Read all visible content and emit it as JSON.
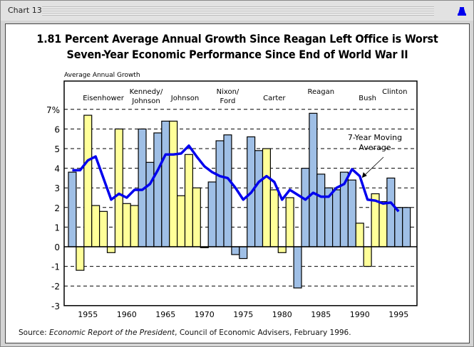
{
  "window": {
    "title": "Chart 13",
    "icon": "bell-icon",
    "icon_color": "#0000ee"
  },
  "chart_data": {
    "type": "bar",
    "title_lines": [
      "1.81 Percent Average Annual Growth Since Reagan Left Office is Worst",
      "Seven-Year Economic Performance Since End of World War II"
    ],
    "ylabel": "Average Annual Growth",
    "xlabel": "",
    "ylim": [
      -3,
      8
    ],
    "yticks": [
      -3,
      -2,
      -1,
      0,
      1,
      2,
      3,
      4,
      5,
      6,
      7
    ],
    "ytick_labels": [
      "-3",
      "-2",
      "-1",
      "0",
      "1",
      "2",
      "3",
      "4",
      "5",
      "6",
      "7%"
    ],
    "gridlines": "dashed at each integer from -2 to 7",
    "xticks": [
      1955,
      1960,
      1965,
      1970,
      1975,
      1980,
      1985,
      1990,
      1995
    ],
    "colors": {
      "blue": "#9fbfe6",
      "yellow": "#ffff99",
      "line": "#0000ee",
      "outline": "#000000"
    },
    "categories": [
      1953,
      1954,
      1955,
      1956,
      1957,
      1958,
      1959,
      1960,
      1961,
      1962,
      1963,
      1964,
      1965,
      1966,
      1967,
      1968,
      1969,
      1970,
      1971,
      1972,
      1973,
      1974,
      1975,
      1976,
      1977,
      1978,
      1979,
      1980,
      1981,
      1982,
      1983,
      1984,
      1985,
      1986,
      1987,
      1988,
      1989,
      1990,
      1991,
      1992,
      1993,
      1994,
      1995,
      1996
    ],
    "series": [
      {
        "name": "Annual Growth",
        "values": [
          3.8,
          -1.2,
          6.7,
          2.1,
          1.8,
          -0.3,
          6.0,
          2.2,
          2.1,
          6.0,
          4.3,
          5.8,
          6.4,
          6.4,
          2.6,
          4.7,
          3.0,
          -0.05,
          3.3,
          5.4,
          5.7,
          -0.4,
          -0.6,
          5.6,
          4.9,
          5.0,
          2.9,
          -0.3,
          2.5,
          -2.1,
          4.0,
          6.8,
          3.7,
          3.0,
          2.9,
          3.8,
          3.4,
          1.2,
          -1.0,
          2.7,
          2.3,
          3.5,
          2.0,
          2.0
        ],
        "bar_colors": [
          "blue",
          "yellow",
          "yellow",
          "yellow",
          "yellow",
          "yellow",
          "yellow",
          "yellow",
          "yellow",
          "blue",
          "blue",
          "blue",
          "blue",
          "yellow",
          "yellow",
          "yellow",
          "yellow",
          "yellow",
          "blue",
          "blue",
          "blue",
          "blue",
          "blue",
          "blue",
          "blue",
          "yellow",
          "yellow",
          "yellow",
          "yellow",
          "blue",
          "blue",
          "blue",
          "blue",
          "blue",
          "blue",
          "blue",
          "blue",
          "yellow",
          "yellow",
          "yellow",
          "yellow",
          "blue",
          "blue",
          "blue"
        ]
      },
      {
        "name": "7-Year Moving Average",
        "type": "line",
        "x": [
          1953,
          1954,
          1955,
          1956,
          1957,
          1958,
          1959,
          1960,
          1961,
          1962,
          1963,
          1964,
          1965,
          1966,
          1967,
          1968,
          1969,
          1970,
          1971,
          1972,
          1973,
          1974,
          1975,
          1976,
          1977,
          1978,
          1979,
          1980,
          1981,
          1982,
          1983,
          1984,
          1985,
          1986,
          1987,
          1988,
          1989,
          1990,
          1991,
          1992,
          1993,
          1994,
          1995
        ],
        "values": [
          3.9,
          3.9,
          4.4,
          4.6,
          3.5,
          2.4,
          2.7,
          2.5,
          2.9,
          2.9,
          3.2,
          3.9,
          4.7,
          4.7,
          4.75,
          5.15,
          4.6,
          4.1,
          3.8,
          3.6,
          3.5,
          3.0,
          2.4,
          2.75,
          3.3,
          3.6,
          3.3,
          2.4,
          2.9,
          2.65,
          2.4,
          2.75,
          2.55,
          2.55,
          3.0,
          3.2,
          3.95,
          3.6,
          2.4,
          2.35,
          2.2,
          2.25,
          1.8
        ]
      }
    ],
    "president_labels": [
      {
        "text": [
          "Eisenhower"
        ],
        "year": 1957
      },
      {
        "text": [
          "Kennedy/",
          "Johnson"
        ],
        "year": 1962.5
      },
      {
        "text": [
          "Johnson"
        ],
        "year": 1967.5
      },
      {
        "text": [
          "Nixon/",
          "Ford"
        ],
        "year": 1973
      },
      {
        "text": [
          "Carter"
        ],
        "year": 1979
      },
      {
        "text": [
          "Reagan"
        ],
        "year": 1985
      },
      {
        "text": [
          "Bush"
        ],
        "year": 1991
      },
      {
        "text": [
          "Clinton"
        ],
        "year": 1994.5
      }
    ],
    "annotation": {
      "text": [
        "7-Year Moving",
        "Average"
      ],
      "points_to_year": 1990,
      "points_to_value": 3.4
    }
  },
  "source": {
    "prefix": "Source: ",
    "italic": "Economic Report of the President",
    "suffix": ", Council of Economic Advisers, February 1996."
  }
}
